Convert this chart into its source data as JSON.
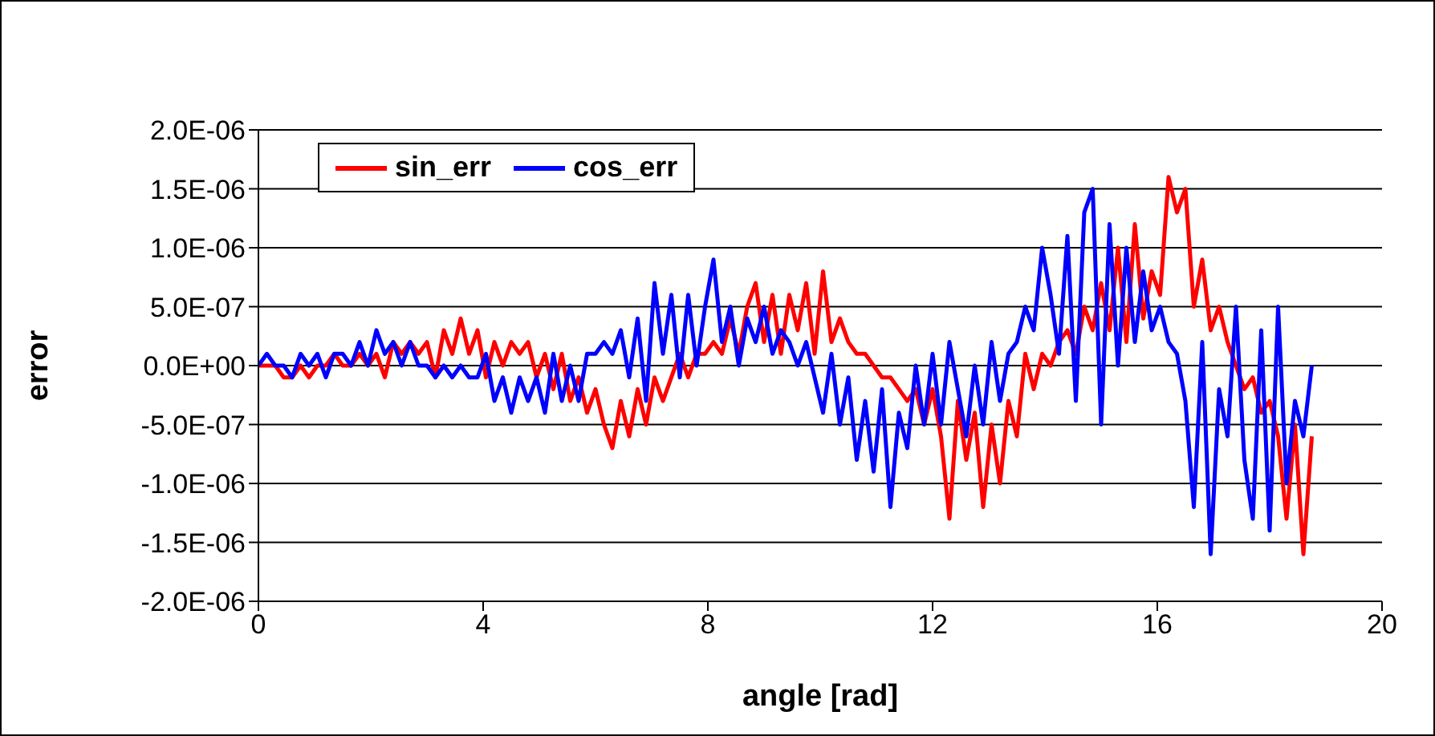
{
  "chart_data": {
    "type": "line",
    "xlabel": "angle [rad]",
    "ylabel": "error",
    "x": [
      0,
      0.15,
      0.3,
      0.45,
      0.6,
      0.75,
      0.9,
      1.05,
      1.2,
      1.35,
      1.5,
      1.65,
      1.8,
      1.95,
      2.1,
      2.25,
      2.4,
      2.55,
      2.7,
      2.85,
      3,
      3.15,
      3.3,
      3.45,
      3.6,
      3.75,
      3.9,
      4.05,
      4.2,
      4.35,
      4.5,
      4.65,
      4.8,
      4.95,
      5.1,
      5.25,
      5.4,
      5.55,
      5.7,
      5.85,
      6,
      6.15,
      6.3,
      6.45,
      6.6,
      6.75,
      6.9,
      7.05,
      7.2,
      7.35,
      7.5,
      7.65,
      7.8,
      7.95,
      8.1,
      8.25,
      8.4,
      8.55,
      8.7,
      8.85,
      9,
      9.15,
      9.3,
      9.45,
      9.6,
      9.75,
      9.9,
      10.05,
      10.2,
      10.35,
      10.5,
      10.65,
      10.8,
      10.95,
      11.1,
      11.25,
      11.4,
      11.55,
      11.7,
      11.85,
      12,
      12.15,
      12.3,
      12.45,
      12.6,
      12.75,
      12.9,
      13.05,
      13.2,
      13.35,
      13.5,
      13.65,
      13.8,
      13.95,
      14.1,
      14.25,
      14.4,
      14.55,
      14.7,
      14.85,
      15,
      15.15,
      15.3,
      15.45,
      15.6,
      15.75,
      15.9,
      16.05,
      16.2,
      16.35,
      16.5,
      16.65,
      16.8,
      16.95,
      17.1,
      17.25,
      17.4,
      17.55,
      17.7,
      17.85,
      18,
      18.15,
      18.3,
      18.45,
      18.6,
      18.75
    ],
    "series": [
      {
        "name": "sin_err",
        "color": "#ff0000",
        "values": [
          0,
          0,
          0,
          -1e-07,
          -1e-07,
          0,
          -1e-07,
          0,
          0,
          1e-07,
          0,
          0,
          1e-07,
          0,
          1e-07,
          -1e-07,
          2e-07,
          1e-07,
          2e-07,
          1e-07,
          2e-07,
          -1e-07,
          3e-07,
          1e-07,
          4e-07,
          1e-07,
          3e-07,
          -1e-07,
          2e-07,
          0,
          2e-07,
          1e-07,
          2e-07,
          -1e-07,
          1e-07,
          -2e-07,
          1e-07,
          -3e-07,
          -1e-07,
          -4e-07,
          -2e-07,
          -5e-07,
          -7e-07,
          -3e-07,
          -6e-07,
          -2e-07,
          -5e-07,
          -1e-07,
          -3e-07,
          -1e-07,
          1e-07,
          -1e-07,
          1e-07,
          1e-07,
          2e-07,
          1e-07,
          4e-07,
          1e-07,
          5e-07,
          7e-07,
          2e-07,
          6e-07,
          1e-07,
          6e-07,
          3e-07,
          7e-07,
          1e-07,
          8e-07,
          2e-07,
          4e-07,
          2e-07,
          1e-07,
          1e-07,
          0,
          -1e-07,
          -1e-07,
          -2e-07,
          -3e-07,
          -2e-07,
          -5e-07,
          -2e-07,
          -6e-07,
          -1.3e-06,
          -3e-07,
          -8e-07,
          -4e-07,
          -1.2e-06,
          -5e-07,
          -1e-06,
          -3e-07,
          -6e-07,
          1e-07,
          -2e-07,
          1e-07,
          0,
          2e-07,
          3e-07,
          1e-07,
          5e-07,
          3e-07,
          7e-07,
          3e-07,
          1e-06,
          2e-07,
          1.2e-06,
          4e-07,
          8e-07,
          6e-07,
          1.6e-06,
          1.3e-06,
          1.5e-06,
          5e-07,
          9e-07,
          3e-07,
          5e-07,
          2e-07,
          0,
          -2e-07,
          -1e-07,
          -4e-07,
          -3e-07,
          -6e-07,
          -1.3e-06,
          -5e-07,
          -1.6e-06,
          -6e-07
        ]
      },
      {
        "name": "cos_err",
        "color": "#0000ff",
        "values": [
          0,
          1e-07,
          0,
          0,
          -1e-07,
          1e-07,
          0,
          1e-07,
          -1e-07,
          1e-07,
          1e-07,
          0,
          2e-07,
          0,
          3e-07,
          1e-07,
          2e-07,
          0,
          2e-07,
          0,
          0,
          -1e-07,
          0,
          -1e-07,
          0,
          -1e-07,
          -1e-07,
          1e-07,
          -3e-07,
          -1e-07,
          -4e-07,
          -1e-07,
          -3e-07,
          -1e-07,
          -4e-07,
          1e-07,
          -3e-07,
          0,
          -3e-07,
          1e-07,
          1e-07,
          2e-07,
          1e-07,
          3e-07,
          -1e-07,
          4e-07,
          -3e-07,
          7e-07,
          1e-07,
          6e-07,
          -1e-07,
          6e-07,
          0,
          5e-07,
          9e-07,
          2e-07,
          5e-07,
          0,
          4e-07,
          2e-07,
          5e-07,
          1e-07,
          3e-07,
          2e-07,
          0,
          2e-07,
          -1e-07,
          -4e-07,
          1e-07,
          -5e-07,
          -1e-07,
          -8e-07,
          -3e-07,
          -9e-07,
          -2e-07,
          -1.2e-06,
          -4e-07,
          -7e-07,
          0,
          -5e-07,
          1e-07,
          -5e-07,
          2e-07,
          -2e-07,
          -6e-07,
          0,
          -5e-07,
          2e-07,
          -3e-07,
          1e-07,
          2e-07,
          5e-07,
          3e-07,
          1e-06,
          6e-07,
          1e-07,
          1.1e-06,
          -3e-07,
          1.3e-06,
          1.5e-06,
          -5e-07,
          1.2e-06,
          0,
          1e-06,
          2e-07,
          8e-07,
          3e-07,
          5e-07,
          2e-07,
          1e-07,
          -3e-07,
          -1.2e-06,
          2e-07,
          -1.6e-06,
          -2e-07,
          -6e-07,
          5e-07,
          -8e-07,
          -1.3e-06,
          3e-07,
          -1.4e-06,
          5e-07,
          -1e-06,
          -3e-07,
          -6e-07,
          0
        ]
      }
    ],
    "xlim": [
      0,
      20
    ],
    "xticks": [
      0,
      4,
      8,
      12,
      16,
      20
    ],
    "ylim": [
      -2e-06,
      2e-06
    ],
    "yticks": [
      {
        "value": -2e-06,
        "label": "-2.0E-06"
      },
      {
        "value": -1.5e-06,
        "label": "-1.5E-06"
      },
      {
        "value": -1e-06,
        "label": "-1.0E-06"
      },
      {
        "value": -5e-07,
        "label": "-5.0E-07"
      },
      {
        "value": 0,
        "label": "0.0E+00"
      },
      {
        "value": 5e-07,
        "label": "5.0E-07"
      },
      {
        "value": 1e-06,
        "label": "1.0E-06"
      },
      {
        "value": 1.5e-06,
        "label": "1.5E-06"
      },
      {
        "value": 2e-06,
        "label": "2.0E-06"
      }
    ],
    "grid": "y",
    "legend": "top left",
    "marker": "none",
    "line_style": "solid"
  }
}
